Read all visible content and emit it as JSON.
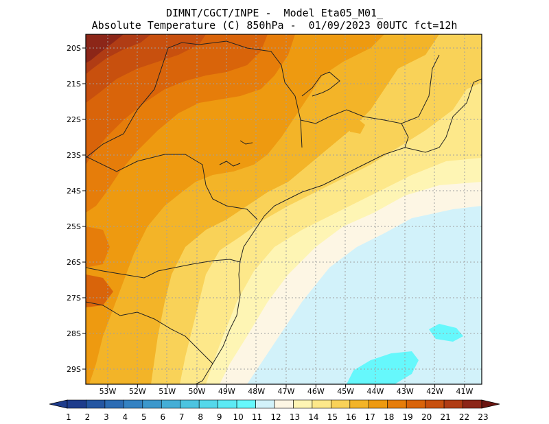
{
  "title": {
    "line1": "DIMNT/CGCT/INPE -  Model Eta05_M01_",
    "line2": "Absolute Temperature (C) 850hPa -  01/09/2023 00UTC fct=12h"
  },
  "axes": {
    "lon_labels": [
      "53W",
      "52W",
      "51W",
      "50W",
      "49W",
      "48W",
      "47W",
      "46W",
      "45W",
      "44W",
      "43W",
      "42W",
      "41W"
    ],
    "lat_labels": [
      "20S",
      "21S",
      "22S",
      "23S",
      "24S",
      "25S",
      "26S",
      "27S",
      "28S",
      "29S"
    ]
  },
  "colorbar": {
    "labels": [
      "1",
      "2",
      "3",
      "4",
      "5",
      "6",
      "7",
      "8",
      "9",
      "10",
      "11",
      "12",
      "13",
      "14",
      "15",
      "16",
      "17",
      "18",
      "19",
      "20",
      "21",
      "22",
      "23"
    ],
    "colors": [
      "#1e3c8c",
      "#2456a2",
      "#2c6cb4",
      "#3482c2",
      "#3c98cc",
      "#44aed6",
      "#4cc4e0",
      "#54d8ea",
      "#5ceaf4",
      "#66f8fc",
      "#d2f2fa",
      "#fdf6e4",
      "#fef5b4",
      "#fde88a",
      "#f9d258",
      "#f3b428",
      "#ee9a10",
      "#e67d0a",
      "#d9640a",
      "#c8500e",
      "#b03c14",
      "#8c2618",
      "#6a1410"
    ],
    "under_color": "#1e3c8c",
    "over_color": "#6a1410"
  }
}
